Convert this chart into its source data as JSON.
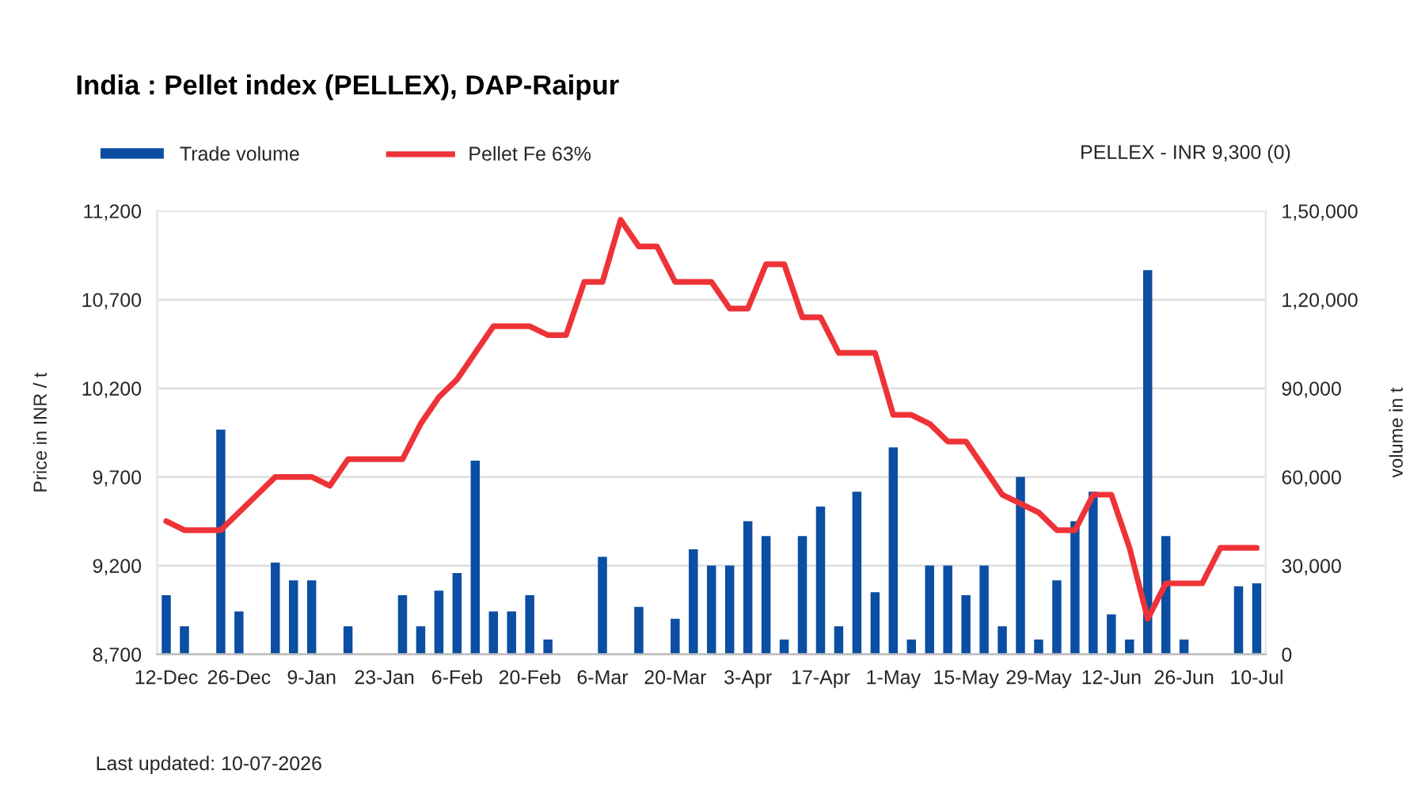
{
  "chart_data": {
    "type": "bar",
    "title": "India : Pellet index (PELLEX), DAP-Raipur",
    "ylabel": "Price in INR / t",
    "y2label": "volume in t",
    "annotations": [
      "PELLEX - INR 9,300 (0)",
      "Last updated: 10-07-2026"
    ],
    "categories": [
      "12-Dec",
      null,
      null,
      null,
      "26-Dec",
      null,
      null,
      null,
      "9-Jan",
      null,
      null,
      null,
      "23-Jan",
      null,
      null,
      null,
      "6-Feb",
      null,
      null,
      null,
      "20-Feb",
      null,
      null,
      null,
      "6-Mar",
      null,
      null,
      null,
      "20-Mar",
      null,
      null,
      null,
      "3-Apr",
      null,
      null,
      null,
      "17-Apr",
      null,
      null,
      null,
      "1-May",
      null,
      null,
      null,
      "15-May",
      null,
      null,
      null,
      "29-May",
      null,
      null,
      null,
      "12-Jun",
      null,
      null,
      null,
      "26-Jun",
      null,
      null,
      null,
      "10-Jul"
    ],
    "series": [
      {
        "name": "Trade volume",
        "axis": "y2",
        "color": "#0b4ea2",
        "values": [
          20000,
          9500,
          null,
          76000,
          14500,
          null,
          31000,
          25000,
          25000,
          null,
          9500,
          null,
          null,
          20000,
          9500,
          21500,
          27500,
          65500,
          14500,
          14500,
          20000,
          5000,
          null,
          null,
          33000,
          null,
          16000,
          null,
          12000,
          35500,
          30000,
          30000,
          45000,
          40000,
          5000,
          40000,
          50000,
          9500,
          55000,
          21000,
          70000,
          5000,
          30000,
          30000,
          20000,
          30000,
          9500,
          60000,
          5000,
          25000,
          45000,
          55000,
          13500,
          5000,
          130000,
          40000,
          5000,
          null,
          null,
          23000,
          24000
        ]
      },
      {
        "name": "Pellet Fe 63%",
        "type": "line",
        "color": "#ee3338",
        "values": [
          9450,
          9400,
          9400,
          9400,
          9500,
          9600,
          9700,
          9700,
          9700,
          9650,
          9800,
          9800,
          9800,
          9800,
          10000,
          10150,
          10250,
          10400,
          10550,
          10550,
          10550,
          10500,
          10500,
          10800,
          10800,
          11150,
          11000,
          11000,
          10800,
          10800,
          10800,
          10650,
          10650,
          10900,
          10900,
          10600,
          10600,
          10400,
          10400,
          10400,
          10050,
          10050,
          10000,
          9900,
          9900,
          9750,
          9600,
          9550,
          9500,
          9400,
          9400,
          9600,
          9600,
          9300,
          8900,
          9100,
          9100,
          9100,
          9300,
          9300,
          9300
        ]
      }
    ],
    "ylim": [
      8700,
      11200
    ],
    "yticks": [
      {
        "value": 8700,
        "label": "8,700"
      },
      {
        "value": 9200,
        "label": "9,200"
      },
      {
        "value": 9700,
        "label": "9,700"
      },
      {
        "value": 10200,
        "label": "10,200"
      },
      {
        "value": 10700,
        "label": "10,700"
      },
      {
        "value": 11200,
        "label": "11,200"
      }
    ],
    "y2lim": [
      0,
      150000
    ],
    "y2ticks": [
      0,
      {
        "value": 30000,
        "label": "30,000"
      },
      {
        "value": 60000,
        "label": "60,000"
      },
      {
        "value": 90000,
        "label": "90,000"
      },
      {
        "value": 120000,
        "label": "1,20,000"
      },
      {
        "value": 150000,
        "label": "1,50,000"
      }
    ],
    "grid": "y",
    "legend": "top left",
    "line_style": "solid"
  }
}
